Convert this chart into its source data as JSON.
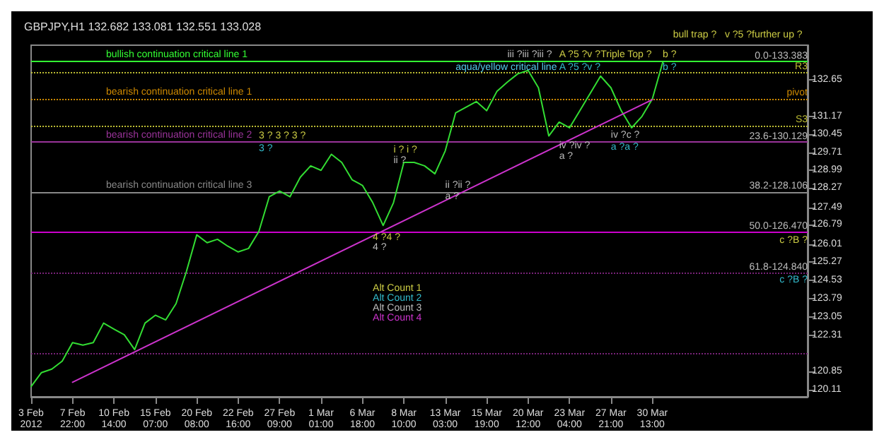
{
  "chart_data": {
    "type": "line",
    "title": "GBPJPY,H1 132.682 133.081 132.551 133.028",
    "ylim": [
      119.83,
      134.05
    ],
    "categories": [
      "3 Feb 2012",
      null,
      null,
      null,
      "7 Feb 22:00",
      null,
      null,
      null,
      "10 Feb 14:00",
      null,
      null,
      null,
      "15 Feb 07:00",
      null,
      null,
      null,
      "20 Feb 08:00",
      null,
      null,
      null,
      "22 Feb 16:00",
      null,
      null,
      null,
      "27 Feb 09:00",
      null,
      null,
      null,
      "1 Mar 01:00",
      null,
      null,
      null,
      "6 Mar 18:00",
      null,
      null,
      null,
      "8 Mar 10:00",
      null,
      null,
      null,
      "13 Mar 03:00",
      null,
      null,
      null,
      "15 Mar 19:00",
      null,
      null,
      null,
      "20 Mar 12:00",
      null,
      null,
      null,
      "23 Mar 04:00",
      null,
      null,
      null,
      "27 Mar 21:00",
      null,
      null,
      null,
      "30 Mar 13:00",
      null,
      null,
      null,
      null,
      null,
      null,
      null,
      null,
      null,
      null,
      null,
      null,
      null,
      null,
      null
    ],
    "yticks": [
      120.11,
      120.85,
      122.31,
      123.05,
      123.79,
      124.53,
      125.27,
      126.01,
      126.79,
      127.49,
      128.27,
      128.99,
      129.71,
      130.45,
      131.17,
      132.65
    ],
    "series": [
      {
        "color": "#33dd33",
        "values": [
          120.25,
          120.81,
          120.95,
          121.27,
          122.02,
          121.92,
          122.02,
          122.81,
          122.57,
          122.34,
          121.74,
          122.81,
          123.13,
          122.94,
          123.6,
          124.9,
          126.38,
          126.06,
          126.2,
          125.92,
          125.69,
          125.83,
          126.52,
          127.92,
          128.15,
          127.92,
          128.71,
          129.17,
          128.99,
          129.64,
          129.31,
          128.61,
          128.38,
          127.68,
          126.76,
          127.68,
          129.31,
          129.31,
          129.17,
          128.85,
          129.78,
          131.31,
          131.54,
          131.77,
          131.4,
          132.19,
          132.56,
          132.89,
          133.03,
          132.33,
          130.38,
          130.94,
          130.71,
          131.4,
          132.1,
          132.8,
          132.33,
          131.4,
          130.71,
          131.17,
          131.87,
          133.35,
          null,
          null,
          null,
          null,
          null,
          null,
          null,
          null,
          null,
          null,
          null,
          null,
          null,
          null
        ]
      },
      {
        "type": "line",
        "color": "#cc33cc",
        "x": [
          "7 Feb 22:00",
          "30 Mar 13:00"
        ],
        "values": [
          120.42,
          131.85
        ]
      }
    ],
    "ref_lines": [
      {
        "axis": "y",
        "value": 133.383,
        "label": "bullish continuation critical line 1",
        "color": "#33ff33",
        "line_style": "solid"
      },
      {
        "axis": "y",
        "value": 132.94,
        "label": null,
        "color": "#bbbb33",
        "line_style": "dotted"
      },
      {
        "axis": "y",
        "value": 131.87,
        "label": "bearish continuation critical line 1",
        "color": "#cc8800",
        "line_style": "dotted"
      },
      {
        "axis": "y",
        "value": 130.8,
        "label": null,
        "color": "#bbbb33",
        "line_style": "dotted"
      },
      {
        "axis": "y",
        "value": 130.129,
        "label": "bearish continuation critical line 2",
        "color": "#993399",
        "line_style": "solid"
      },
      {
        "axis": "y",
        "value": 128.106,
        "label": "bearish continuation critical line 3",
        "color": "#888888",
        "line_style": "solid"
      },
      {
        "axis": "y",
        "value": 126.47,
        "label": null,
        "color": "#cc00cc",
        "line_style": "solid"
      },
      {
        "axis": "y",
        "value": 124.84,
        "label": null,
        "color": "#772277",
        "line_style": "dotted"
      },
      {
        "axis": "y",
        "value": 121.6,
        "label": null,
        "color": "#772277",
        "line_style": "dotted"
      }
    ],
    "annotations": [
      "aqua/yellow critical line",
      "3 ? 3 ? 3 ?",
      "3 ?",
      "i ? i ?",
      "ii ?",
      "iii ?iii ?iii ?",
      "A ?5 ?v ?",
      "Triple Top ?",
      "A ?5 ?v ?",
      "b ?",
      "b ?",
      "bull trap ?",
      "v ?5 ?further up ?",
      "iv ?iv ?",
      "a ?",
      "iv ?c ?",
      "a ?a ?",
      "ii ?ii ?",
      "a ?",
      "4 ?4 ?",
      "4 ?",
      "Alt Count 1",
      "Alt Count 2",
      "Alt Count 3",
      "Alt Count 4",
      "c ?B ?",
      "c ?B ?",
      "0.0-133.383",
      "R3",
      "pivot",
      "S3",
      "23.6-130.129",
      "38.2-128.106",
      "50.0-126.470",
      "61.8-124.840"
    ],
    "grid": false,
    "marker": "none",
    "line_style": "solid"
  }
}
